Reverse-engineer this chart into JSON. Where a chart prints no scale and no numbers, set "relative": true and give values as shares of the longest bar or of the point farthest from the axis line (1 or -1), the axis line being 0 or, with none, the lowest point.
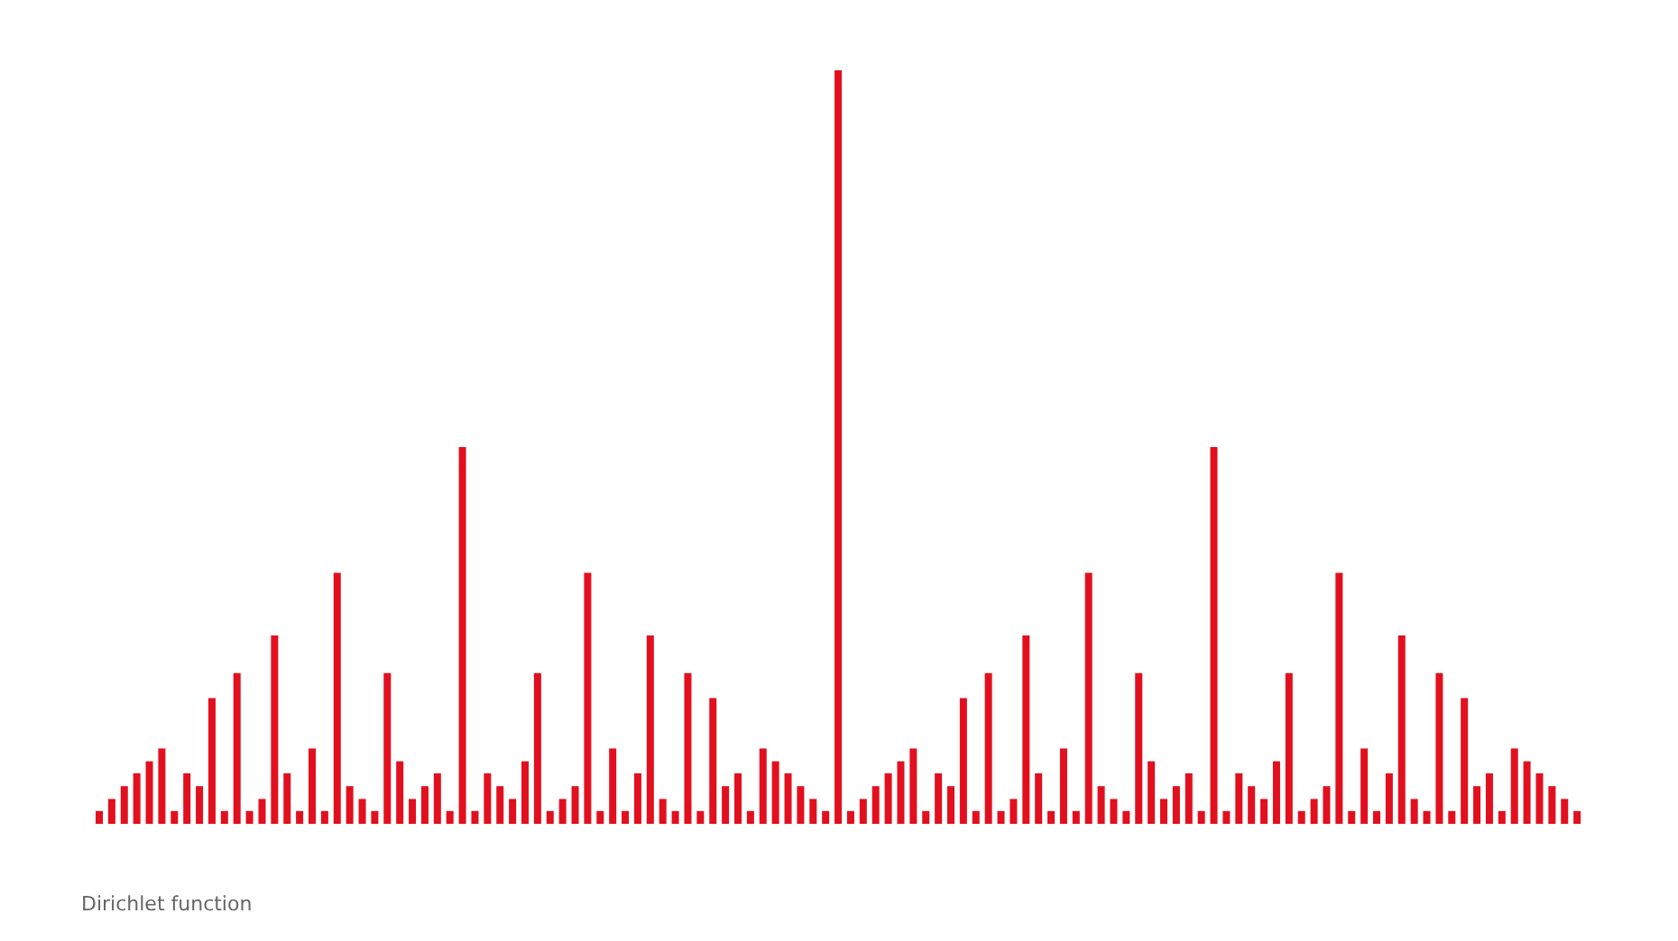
{
  "chart_data": {
    "type": "bar",
    "relative": true,
    "color": "#e2101e",
    "grid": false,
    "legend": false,
    "categories": [
      null,
      null,
      null,
      null,
      null,
      null,
      null,
      null,
      null,
      null,
      null,
      null,
      null,
      null,
      null,
      null,
      null,
      null,
      null,
      null,
      null,
      null,
      null,
      null,
      null,
      null,
      null,
      null,
      null,
      null,
      null,
      null,
      null,
      null,
      null,
      null,
      null,
      null,
      null,
      null,
      null,
      null,
      null,
      null,
      null,
      null,
      null,
      null,
      null,
      null,
      null,
      null,
      null,
      null,
      null,
      null,
      null,
      null,
      null,
      null,
      null,
      null,
      null,
      null,
      null,
      null,
      null,
      null,
      null,
      null,
      null,
      null,
      null,
      null,
      null,
      null,
      null,
      null,
      null,
      null,
      null,
      null,
      null,
      null,
      null,
      null,
      null,
      null,
      null,
      null,
      null,
      null,
      null,
      null,
      null,
      null,
      null,
      null,
      null,
      null,
      null,
      null,
      null,
      null,
      null,
      null,
      null,
      null,
      null,
      null,
      null,
      null,
      null,
      null,
      null,
      null,
      null,
      null,
      null
    ],
    "values": [
      0.017,
      0.033,
      0.05,
      0.067,
      0.083,
      0.1,
      0.017,
      0.067,
      0.05,
      0.167,
      0.017,
      0.2,
      0.017,
      0.033,
      0.25,
      0.067,
      0.017,
      0.1,
      0.017,
      0.333,
      0.05,
      0.033,
      0.017,
      0.2,
      0.083,
      0.033,
      0.05,
      0.067,
      0.017,
      0.5,
      0.017,
      0.067,
      0.05,
      0.033,
      0.083,
      0.2,
      0.017,
      0.033,
      0.05,
      0.333,
      0.017,
      0.1,
      0.017,
      0.067,
      0.25,
      0.033,
      0.017,
      0.2,
      0.017,
      0.167,
      0.05,
      0.067,
      0.017,
      0.1,
      0.083,
      0.067,
      0.05,
      0.033,
      0.017,
      1,
      0.017,
      0.033,
      0.05,
      0.067,
      0.083,
      0.1,
      0.017,
      0.067,
      0.05,
      0.167,
      0.017,
      0.2,
      0.017,
      0.033,
      0.25,
      0.067,
      0.017,
      0.1,
      0.017,
      0.333,
      0.05,
      0.033,
      0.017,
      0.2,
      0.083,
      0.033,
      0.05,
      0.067,
      0.017,
      0.5,
      0.017,
      0.067,
      0.05,
      0.033,
      0.083,
      0.2,
      0.017,
      0.033,
      0.05,
      0.333,
      0.017,
      0.1,
      0.017,
      0.067,
      0.25,
      0.033,
      0.017,
      0.2,
      0.017,
      0.167,
      0.05,
      0.067,
      0.017,
      0.1,
      0.083,
      0.067,
      0.05,
      0.033,
      0.017
    ],
    "annotations": [
      "Dirichlet function"
    ]
  }
}
